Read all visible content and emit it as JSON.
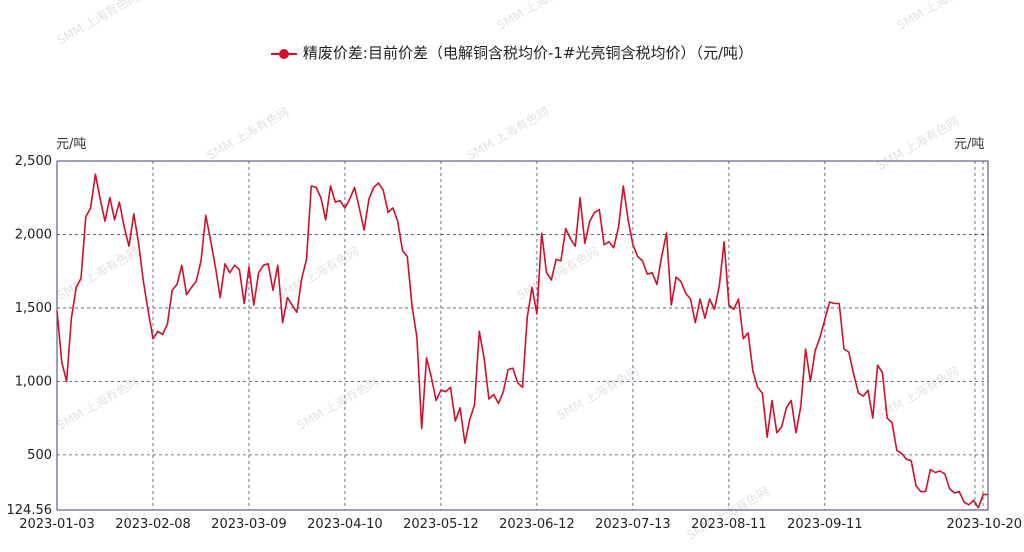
{
  "chart_data": {
    "type": "line",
    "legend_position": "top-center",
    "series": [
      {
        "name": "精废价差:目前价差（电解铜含税均价-1#光亮铜含税均价）（元/吨）",
        "color": "#d0102a",
        "values": [
          1480,
          1130,
          1000,
          1430,
          1640,
          1700,
          2120,
          2180,
          2410,
          2240,
          2090,
          2250,
          2100,
          2220,
          2050,
          1920,
          2140,
          1940,
          1680,
          1480,
          1290,
          1340,
          1320,
          1390,
          1620,
          1660,
          1790,
          1590,
          1640,
          1680,
          1820,
          2130,
          1960,
          1780,
          1570,
          1800,
          1740,
          1790,
          1760,
          1530,
          1780,
          1520,
          1740,
          1790,
          1800,
          1620,
          1790,
          1400,
          1570,
          1520,
          1470,
          1700,
          1830,
          2330,
          2320,
          2250,
          2100,
          2330,
          2220,
          2230,
          2180,
          2240,
          2320,
          2180,
          2030,
          2240,
          2320,
          2350,
          2300,
          2150,
          2180,
          2090,
          1890,
          1850,
          1510,
          1300,
          680,
          1160,
          1030,
          870,
          940,
          930,
          960,
          730,
          820,
          580,
          740,
          840,
          1340,
          1160,
          880,
          910,
          850,
          930,
          1080,
          1090,
          990,
          960,
          1440,
          1640,
          1460,
          2010,
          1740,
          1690,
          1830,
          1820,
          2040,
          1970,
          1920,
          2250,
          1940,
          2090,
          2150,
          2170,
          1930,
          1950,
          1910,
          2050,
          2330,
          2100,
          1930,
          1850,
          1820,
          1730,
          1740,
          1660,
          1850,
          2010,
          1520,
          1710,
          1680,
          1600,
          1560,
          1400,
          1560,
          1430,
          1560,
          1490,
          1650,
          1950,
          1520,
          1490,
          1560,
          1290,
          1330,
          1070,
          960,
          920,
          620,
          870,
          650,
          690,
          820,
          870,
          650,
          830,
          1220,
          1000,
          1210,
          1300,
          1420,
          1540,
          1530,
          1530,
          1220,
          1200,
          1050,
          920,
          900,
          940,
          750,
          1110,
          1060,
          750,
          720,
          530,
          510,
          470,
          460,
          290,
          250,
          250,
          400,
          380,
          390,
          370,
          270,
          240,
          250,
          180,
          160,
          190,
          140,
          230,
          230
        ]
      }
    ],
    "x_tick_labels": [
      "2023-01-03",
      "2023-02-08",
      "2023-03-09",
      "2023-04-10",
      "2023-05-12",
      "2023-06-12",
      "2023-07-13",
      "2023-08-11",
      "2023-09-11",
      "2023-10-20"
    ],
    "x_tick_index": [
      0,
      20,
      40,
      60,
      80,
      100,
      120,
      140,
      160,
      200
    ],
    "y_tick_labels": [
      "124.56",
      "500",
      "1,000",
      "1,500",
      "2,000",
      "2,500"
    ],
    "y_tick_values": [
      124.56,
      500,
      1000,
      1500,
      2000,
      2500
    ],
    "ylim": [
      124.56,
      2500
    ],
    "unit_left": "元/吨",
    "unit_right": "元/吨",
    "grid": true,
    "watermark": "SMM 上海有色网"
  }
}
